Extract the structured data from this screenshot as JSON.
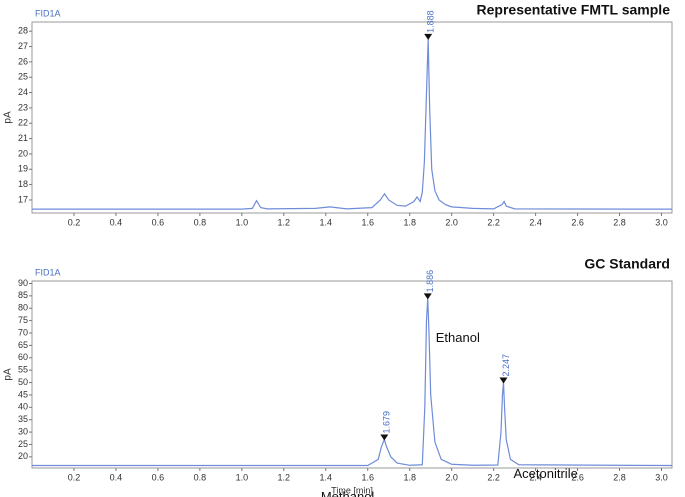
{
  "chart_data": [
    {
      "type": "line",
      "title": "Representative FMTL sample",
      "trace_label": "FID1A",
      "y_label": "pA",
      "color": "#6f8cd8",
      "xlim": [
        0,
        3.05
      ],
      "ylim": [
        16.15,
        28.6
      ],
      "xticks": [
        0.2,
        0.4,
        0.6,
        0.8,
        {
          "value": 1.0,
          "label": "1.0"
        },
        1.2,
        1.4,
        1.6,
        1.8,
        {
          "value": 2.0,
          "label": "2.0"
        },
        2.2,
        2.4,
        2.6,
        2.8,
        {
          "value": 3.0,
          "label": "3.0"
        }
      ],
      "yticks": [
        17,
        18,
        19,
        20,
        21,
        22,
        23,
        24,
        25,
        26,
        27,
        28
      ],
      "x": [
        0,
        1.0,
        1.05,
        1.07,
        1.09,
        1.12,
        1.35,
        1.42,
        1.5,
        1.62,
        1.66,
        1.68,
        1.7,
        1.74,
        1.78,
        1.82,
        1.835,
        1.85,
        1.86,
        1.87,
        1.88,
        1.888,
        1.895,
        1.905,
        1.92,
        1.94,
        1.97,
        2.0,
        2.1,
        2.2,
        2.24,
        2.25,
        2.26,
        2.3,
        3.05
      ],
      "values": [
        16.4,
        16.4,
        16.45,
        16.95,
        16.5,
        16.42,
        16.45,
        16.55,
        16.42,
        16.5,
        17.0,
        17.4,
        17.0,
        16.65,
        16.6,
        16.9,
        17.2,
        16.9,
        17.5,
        19.5,
        24,
        27.5,
        23,
        19,
        17.6,
        17.0,
        16.7,
        16.55,
        16.45,
        16.42,
        16.7,
        16.9,
        16.6,
        16.42,
        16.4
      ],
      "peaks": [
        {
          "rt": 1.888,
          "height": 27.5
        }
      ]
    },
    {
      "type": "line",
      "title": "GC Standard",
      "trace_label": "FID1A",
      "y_label": "pA",
      "x_label": "Time [min]",
      "color": "#6f8cd8",
      "xlim": [
        0,
        3.05
      ],
      "ylim": [
        15.5,
        91
      ],
      "xticks": [
        0.2,
        0.4,
        0.6,
        0.8,
        {
          "value": 1.0,
          "label": "1.0"
        },
        1.2,
        1.4,
        1.6,
        1.8,
        {
          "value": 2.0,
          "label": "2.0"
        },
        2.2,
        2.4,
        2.6,
        2.8,
        {
          "value": 3.0,
          "label": "3.0"
        }
      ],
      "yticks": [
        20,
        25,
        30,
        35,
        40,
        45,
        50,
        55,
        60,
        65,
        70,
        75,
        80,
        85,
        90
      ],
      "x": [
        0,
        1.6,
        1.65,
        1.665,
        1.679,
        1.69,
        1.71,
        1.74,
        1.8,
        1.86,
        1.872,
        1.88,
        1.886,
        1.892,
        1.9,
        1.92,
        1.95,
        2.0,
        2.1,
        2.22,
        2.235,
        2.242,
        2.247,
        2.252,
        2.26,
        2.28,
        2.32,
        3.05
      ],
      "values": [
        16.5,
        16.5,
        19,
        24,
        27,
        24,
        20,
        17.5,
        16.6,
        16.8,
        40,
        75,
        84,
        70,
        45,
        26,
        19,
        17,
        16.6,
        16.7,
        30,
        45,
        50,
        40,
        27,
        19,
        16.8,
        16.5
      ],
      "peaks": [
        {
          "rt": 1.679,
          "height": 27,
          "name": "Methanol"
        },
        {
          "rt": 1.886,
          "height": 84,
          "name": "Ethanol"
        },
        {
          "rt": 2.247,
          "height": 50,
          "name": "Acetonitrile"
        }
      ]
    }
  ]
}
